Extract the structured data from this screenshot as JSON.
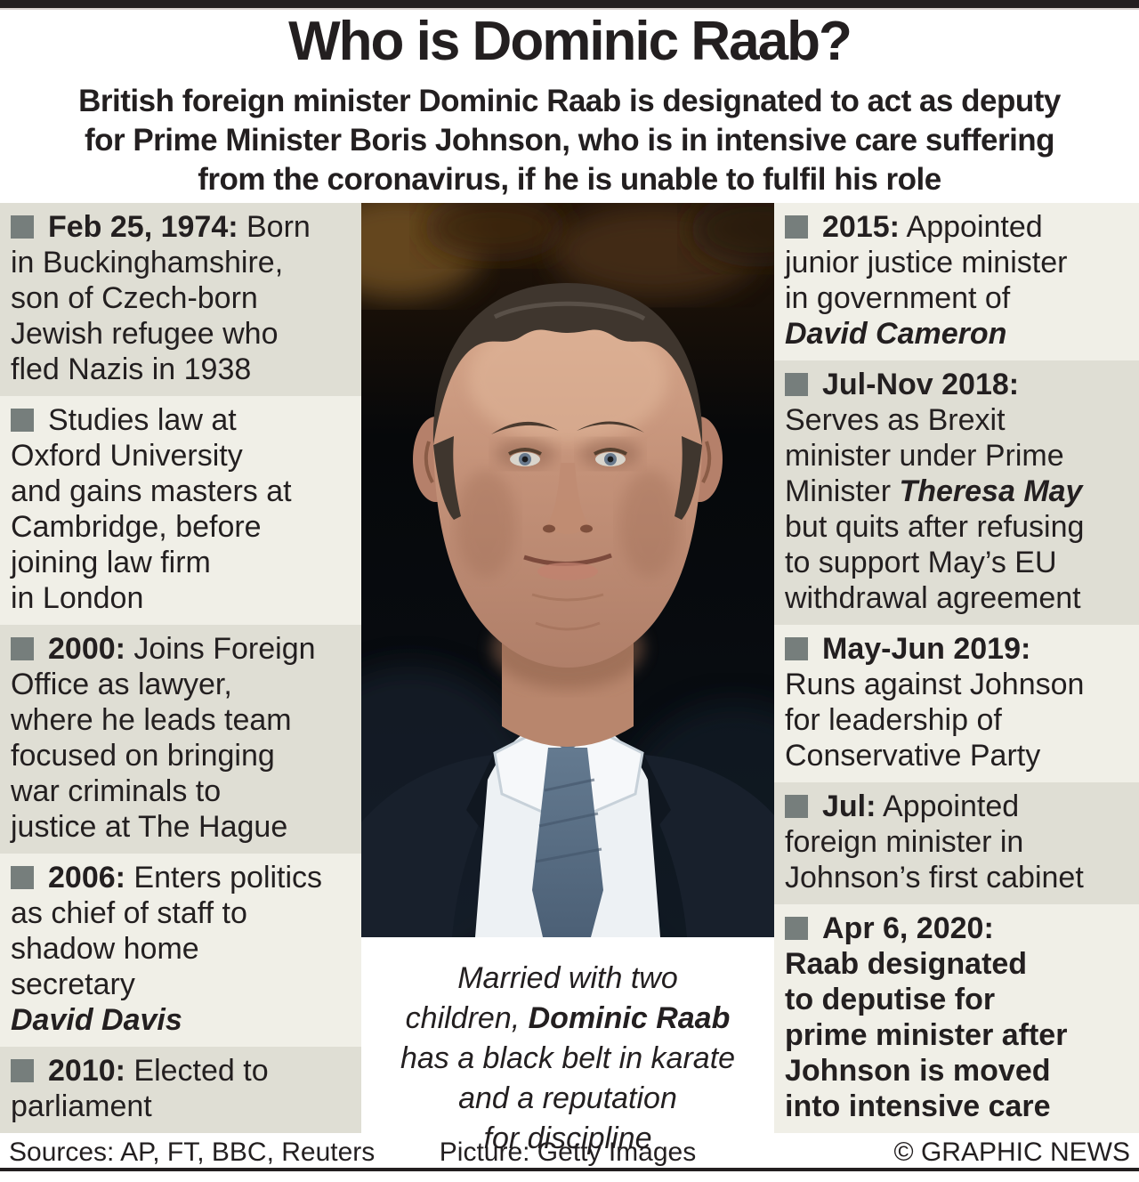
{
  "header": {
    "title": "Who is Dominic Raab?",
    "subtitle": "British foreign minister Dominic Raab is designated to act as deputy\nfor Prime Minister Boris Johnson, who is in intensive care suffering\nfrom the coronavirus, if he is unable to fulfil his role"
  },
  "colors": {
    "band_gray": "#dfded4",
    "band_cream": "#f0efe7",
    "bullet": "#767e7c",
    "text": "#231f20",
    "top_bar": "#231f20",
    "bottom_rule": "#231f20"
  },
  "timeline_left": [
    {
      "band": "gray",
      "segments": [
        {
          "t": "Feb 25, 1974:",
          "b": 1
        },
        {
          "t": " Born\nin Buckinghamshire,\nson of Czech-born\nJewish refugee who\nfled Nazis in 1938"
        }
      ]
    },
    {
      "band": "cream",
      "segments": [
        {
          "t": "Studies law at\nOxford University\nand gains masters at\nCambridge, before\njoining law firm\nin London"
        }
      ]
    },
    {
      "band": "gray",
      "segments": [
        {
          "t": "2000:",
          "b": 1
        },
        {
          "t": " Joins Foreign\nOffice as lawyer,\nwhere he leads team\nfocused on bringing\nwar criminals to\njustice at The Hague"
        }
      ]
    },
    {
      "band": "cream",
      "segments": [
        {
          "t": "2006:",
          "b": 1
        },
        {
          "t": " Enters politics\nas chief of staff to\nshadow home\nsecretary\n"
        },
        {
          "t": "David Davis",
          "b": 1,
          "i": 1
        }
      ]
    },
    {
      "band": "gray",
      "segments": [
        {
          "t": "2010:",
          "b": 1
        },
        {
          "t": " Elected to\nparliament"
        }
      ]
    }
  ],
  "timeline_right": [
    {
      "band": "cream",
      "segments": [
        {
          "t": "2015:",
          "b": 1
        },
        {
          "t": " Appointed\njunior justice minister\nin government of\n"
        },
        {
          "t": "David Cameron",
          "b": 1,
          "i": 1
        }
      ]
    },
    {
      "band": "gray",
      "segments": [
        {
          "t": "Jul-Nov 2018:",
          "b": 1
        },
        {
          "t": "\nServes as Brexit\nminister under Prime\nMinister "
        },
        {
          "t": "Theresa May",
          "b": 1,
          "i": 1
        },
        {
          "t": "\nbut quits after refusing\nto support May’s EU\nwithdrawal agreement"
        }
      ]
    },
    {
      "band": "cream",
      "segments": [
        {
          "t": "May-Jun 2019:",
          "b": 1
        },
        {
          "t": "\nRuns against Johnson\nfor leadership of\nConservative Party"
        }
      ]
    },
    {
      "band": "gray",
      "segments": [
        {
          "t": "Jul:",
          "b": 1
        },
        {
          "t": " Appointed\nforeign minister in\nJohnson’s first cabinet"
        }
      ]
    },
    {
      "band": "cream",
      "segments": [
        {
          "t": "Apr 6, 2020:",
          "b": 1
        },
        {
          "t": "\n"
        },
        {
          "t": "Raab designated\nto deputise for\nprime minister after\nJohnson is moved\ninto intensive care",
          "b": 1
        }
      ]
    }
  ],
  "photo": {
    "subject": "Dominic Raab portrait",
    "caption_segments": [
      {
        "t": "Married with two\nchildren, ",
        "i": 1
      },
      {
        "t": "Dominic Raab",
        "b": 1,
        "i": 1
      },
      {
        "t": "\nhas a black belt in karate\nand a reputation\nfor discipline",
        "i": 1
      }
    ]
  },
  "footer": {
    "sources": "Sources: AP, FT, BBC, Reuters",
    "picture": "Picture: Getty Images",
    "copyright": "© GRAPHIC NEWS"
  }
}
